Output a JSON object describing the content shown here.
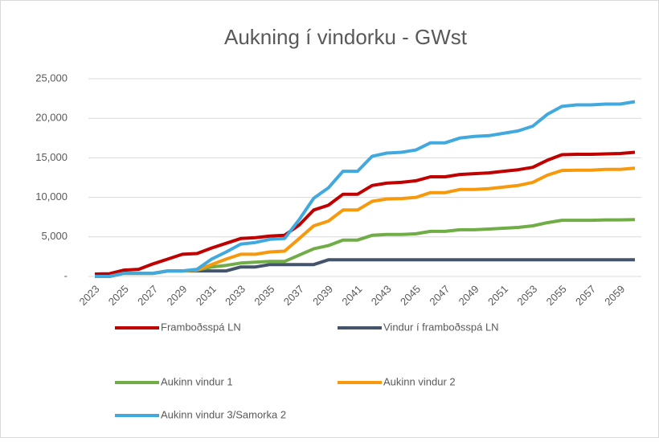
{
  "chart_data": {
    "type": "line",
    "title": "Aukning í vindorku - GWst",
    "categories": [
      "2023",
      null,
      "2025",
      null,
      "2027",
      null,
      "2029",
      null,
      "2031",
      null,
      "2033",
      null,
      "2035",
      null,
      "2037",
      null,
      "2039",
      null,
      "2041",
      null,
      "2043",
      null,
      "2045",
      null,
      "2047",
      null,
      "2049",
      null,
      "2051",
      null,
      "2053",
      null,
      "2055",
      null,
      "2057",
      null,
      "2059",
      null
    ],
    "ylim": [
      0,
      25000
    ],
    "yticks": [
      {
        "value": 0,
        "label": "-"
      },
      {
        "value": 5000,
        "label": "5,000"
      },
      {
        "value": 10000,
        "label": "10,000"
      },
      {
        "value": 15000,
        "label": "15,000"
      },
      {
        "value": 20000,
        "label": "20,000"
      },
      {
        "value": 25000,
        "label": "25,000"
      }
    ],
    "grid": true,
    "series": [
      {
        "name": "Framboðsspá LN",
        "color": "#c00000",
        "values": [
          300,
          350,
          800,
          900,
          1600,
          2200,
          2800,
          2900,
          3600,
          4200,
          4800,
          4900,
          5100,
          5200,
          6500,
          8400,
          9000,
          10400,
          10400,
          11500,
          11800,
          11900,
          12100,
          12600,
          12600,
          12900,
          13000,
          13100,
          13300,
          13500,
          13800,
          14700,
          15400,
          15450,
          15450,
          15500,
          15550,
          15700
        ]
      },
      {
        "name": "Vindur í framboðsspá LN",
        "color": "#44546a",
        "values": [
          0,
          0,
          400,
          400,
          400,
          700,
          700,
          700,
          700,
          700,
          1200,
          1200,
          1500,
          1500,
          1500,
          1500,
          2100,
          2100,
          2100,
          2100,
          2100,
          2100,
          2100,
          2100,
          2100,
          2100,
          2100,
          2100,
          2100,
          2100,
          2100,
          2100,
          2100,
          2100,
          2100,
          2100,
          2100,
          2100
        ]
      },
      {
        "name": "Aukinn vindur 1",
        "color": "#70ad47",
        "values": [
          0,
          0,
          400,
          400,
          400,
          700,
          700,
          800,
          1200,
          1400,
          1700,
          1800,
          1900,
          1900,
          2700,
          3500,
          3900,
          4600,
          4600,
          5200,
          5300,
          5300,
          5400,
          5700,
          5700,
          5900,
          5900,
          6000,
          6100,
          6200,
          6400,
          6800,
          7100,
          7100,
          7100,
          7150,
          7150,
          7200
        ]
      },
      {
        "name": "Aukinn vindur 2",
        "color": "#f7990c",
        "values": [
          0,
          0,
          400,
          400,
          400,
          700,
          700,
          800,
          1500,
          2200,
          2800,
          2800,
          3100,
          3200,
          4800,
          6400,
          7000,
          8400,
          8400,
          9500,
          9800,
          9850,
          10000,
          10600,
          10600,
          11000,
          11000,
          11100,
          11300,
          11500,
          11900,
          12800,
          13400,
          13450,
          13450,
          13550,
          13550,
          13700
        ]
      },
      {
        "name": "Aukinn vindur 3/Samorka 2",
        "color": "#41a9de",
        "values": [
          0,
          0,
          400,
          400,
          400,
          700,
          700,
          900,
          2200,
          3100,
          4100,
          4300,
          4700,
          4800,
          7200,
          9900,
          11200,
          13300,
          13300,
          15200,
          15600,
          15700,
          16000,
          16900,
          16900,
          17500,
          17700,
          17800,
          18100,
          18400,
          19000,
          20500,
          21500,
          21700,
          21700,
          21800,
          21800,
          22100
        ]
      }
    ]
  }
}
